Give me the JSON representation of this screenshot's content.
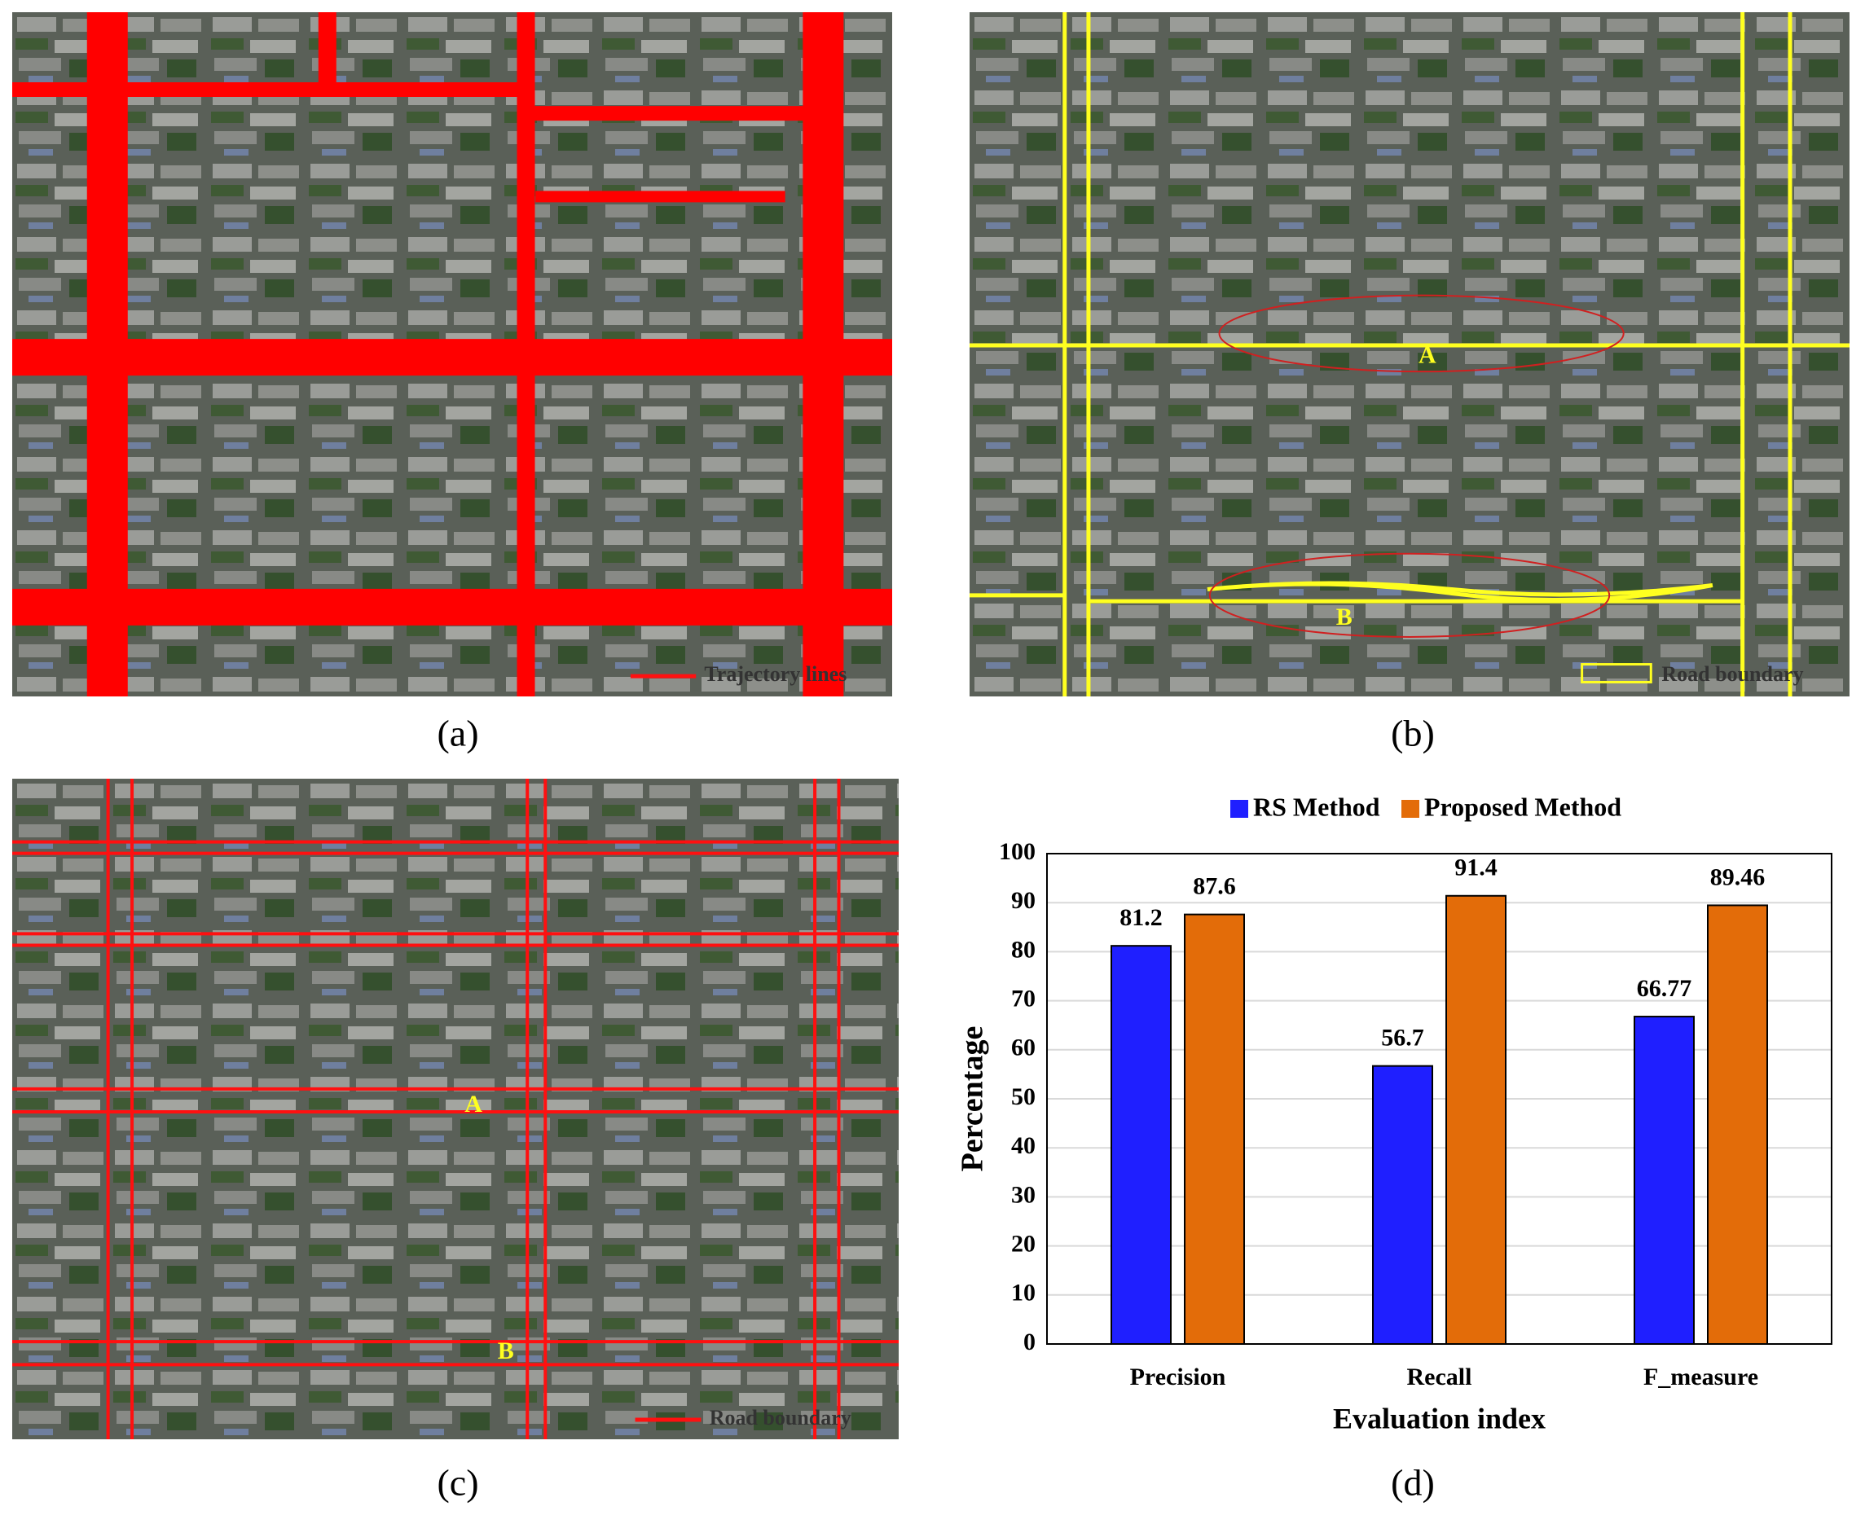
{
  "panels": [
    {
      "label": "(a)",
      "legend": "Trajectory lines"
    },
    {
      "label": "(b)",
      "legend": "Road boundary",
      "annotations": [
        "A",
        "B"
      ]
    },
    {
      "label": "(c)",
      "legend": "Road boundary",
      "annotations": [
        "A",
        "B"
      ]
    }
  ],
  "chart_data": {
    "type": "bar",
    "label": "(d)",
    "categories": [
      "Precision",
      "Recall",
      "F_measure"
    ],
    "series": [
      {
        "name": "RS Method",
        "color": "#1f1fff",
        "values": [
          81.2,
          56.7,
          66.77
        ]
      },
      {
        "name": "Proposed Method",
        "color": "#e36c09",
        "values": [
          87.6,
          91.4,
          89.46
        ]
      }
    ],
    "xlabel": "Evaluation index",
    "ylabel": "Percentage",
    "ylim": [
      0,
      100
    ],
    "yticks": [
      0,
      10,
      20,
      30,
      40,
      50,
      60,
      70,
      80,
      90,
      100
    ],
    "grid": true
  }
}
